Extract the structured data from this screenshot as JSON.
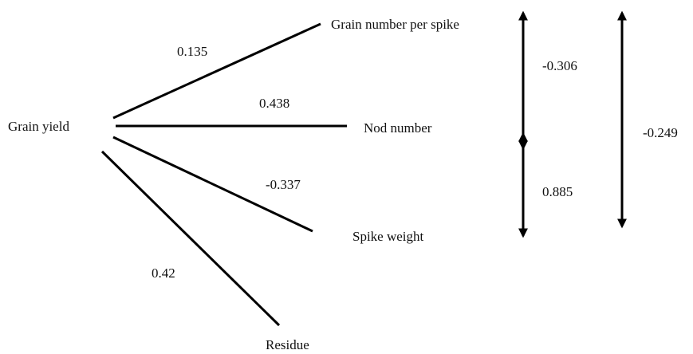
{
  "nodes": [
    {
      "label": "Grain yield"
    },
    {
      "label": "Grain number per spike"
    },
    {
      "label": "Nod number"
    },
    {
      "label": "Spike weight"
    },
    {
      "label": "Residue"
    }
  ],
  "paths": [
    {
      "value": 0.135
    },
    {
      "value": 0.438
    },
    {
      "value": -0.337
    },
    {
      "value": 0.42
    }
  ],
  "correlations": [
    {
      "value": -0.306
    },
    {
      "value": 0.885
    },
    {
      "value": -0.249
    }
  ]
}
